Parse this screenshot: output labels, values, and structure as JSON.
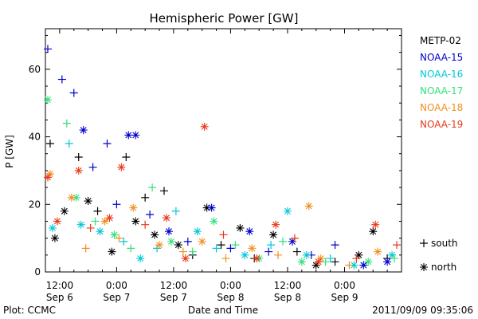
{
  "chart_data": {
    "type": "scatter",
    "title": "Hemispheric Power [GW]",
    "ylabel": "P [GW]",
    "xlabel": "Date and Time",
    "ylim": [
      0,
      72
    ],
    "xlim": [
      "2011-09-06 09:00",
      "2011-09-09 12:00"
    ],
    "yticks": [
      0,
      20,
      40,
      60
    ],
    "xticks": [
      {
        "time": "12:00",
        "date": "Sep 6",
        "at": "2011-09-06 12:00"
      },
      {
        "time": "0:00",
        "date": "Sep 7",
        "at": "2011-09-07 00:00"
      },
      {
        "time": "12:00",
        "date": "Sep 7",
        "at": "2011-09-07 12:00"
      },
      {
        "time": "0:00",
        "date": "Sep 8",
        "at": "2011-09-08 00:00"
      },
      {
        "time": "12:00",
        "date": "Sep 8",
        "at": "2011-09-08 12:00"
      },
      {
        "time": "0:00",
        "date": "Sep 9",
        "at": "2011-09-09 00:00"
      }
    ],
    "legend": {
      "placement": "right",
      "symbols": [
        {
          "marker": "+",
          "label": "south"
        },
        {
          "marker": "*",
          "label": "north"
        }
      ]
    },
    "series": [
      {
        "name": "METP-02",
        "color": "#000000",
        "points": [
          {
            "t": "2011-09-06 10:00",
            "p": 38.0,
            "m": "+"
          },
          {
            "t": "2011-09-06 11:00",
            "p": 10.0,
            "m": "*"
          },
          {
            "t": "2011-09-06 13:00",
            "p": 18.0,
            "m": "*"
          },
          {
            "t": "2011-09-06 16:00",
            "p": 34.0,
            "m": "+"
          },
          {
            "t": "2011-09-06 18:00",
            "p": 21.0,
            "m": "*"
          },
          {
            "t": "2011-09-06 20:00",
            "p": 18.0,
            "m": "+"
          },
          {
            "t": "2011-09-06 23:00",
            "p": 6.0,
            "m": "*"
          },
          {
            "t": "2011-09-07 02:00",
            "p": 34.0,
            "m": "+"
          },
          {
            "t": "2011-09-07 04:00",
            "p": 15.0,
            "m": "*"
          },
          {
            "t": "2011-09-07 06:00",
            "p": 22.0,
            "m": "+"
          },
          {
            "t": "2011-09-07 08:00",
            "p": 11.0,
            "m": "*"
          },
          {
            "t": "2011-09-07 10:00",
            "p": 24.0,
            "m": "+"
          },
          {
            "t": "2011-09-07 13:00",
            "p": 8.0,
            "m": "*"
          },
          {
            "t": "2011-09-07 16:00",
            "p": 5.0,
            "m": "+"
          },
          {
            "t": "2011-09-07 19:00",
            "p": 19.0,
            "m": "*"
          },
          {
            "t": "2011-09-07 22:00",
            "p": 8.0,
            "m": "+"
          },
          {
            "t": "2011-09-08 02:00",
            "p": 13.0,
            "m": "*"
          },
          {
            "t": "2011-09-08 05:00",
            "p": 4.0,
            "m": "+"
          },
          {
            "t": "2011-09-08 09:00",
            "p": 11.0,
            "m": "*"
          },
          {
            "t": "2011-09-08 14:00",
            "p": 6.0,
            "m": "+"
          },
          {
            "t": "2011-09-08 18:00",
            "p": 2.0,
            "m": "*"
          },
          {
            "t": "2011-09-08 22:00",
            "p": 3.0,
            "m": "+"
          },
          {
            "t": "2011-09-09 03:00",
            "p": 5.0,
            "m": "*"
          },
          {
            "t": "2011-09-09 06:00",
            "p": 12.0,
            "m": "*"
          },
          {
            "t": "2011-09-09 09:00",
            "p": 4.0,
            "m": "+"
          }
        ]
      },
      {
        "name": "NOAA-15",
        "color": "#0000cc",
        "points": [
          {
            "t": "2011-09-06 09:30",
            "p": 66.0,
            "m": "+"
          },
          {
            "t": "2011-09-06 12:30",
            "p": 57.0,
            "m": "+"
          },
          {
            "t": "2011-09-06 15:00",
            "p": 53.0,
            "m": "+"
          },
          {
            "t": "2011-09-06 17:00",
            "p": 42.0,
            "m": "*"
          },
          {
            "t": "2011-09-06 19:00",
            "p": 31.0,
            "m": "+"
          },
          {
            "t": "2011-09-06 22:00",
            "p": 38.0,
            "m": "+"
          },
          {
            "t": "2011-09-07 00:00",
            "p": 20.0,
            "m": "+"
          },
          {
            "t": "2011-09-07 02:30",
            "p": 40.5,
            "m": "*"
          },
          {
            "t": "2011-09-07 04:00",
            "p": 40.5,
            "m": "*"
          },
          {
            "t": "2011-09-07 07:00",
            "p": 17.0,
            "m": "+"
          },
          {
            "t": "2011-09-07 11:00",
            "p": 12.0,
            "m": "*"
          },
          {
            "t": "2011-09-07 15:00",
            "p": 9.0,
            "m": "+"
          },
          {
            "t": "2011-09-07 20:00",
            "p": 19.0,
            "m": "*"
          },
          {
            "t": "2011-09-08 00:00",
            "p": 7.0,
            "m": "+"
          },
          {
            "t": "2011-09-08 04:00",
            "p": 12.0,
            "m": "*"
          },
          {
            "t": "2011-09-08 08:00",
            "p": 6.0,
            "m": "+"
          },
          {
            "t": "2011-09-08 13:00",
            "p": 9.0,
            "m": "*"
          },
          {
            "t": "2011-09-08 17:00",
            "p": 5.0,
            "m": "+"
          },
          {
            "t": "2011-09-08 22:00",
            "p": 8.0,
            "m": "+"
          },
          {
            "t": "2011-09-09 04:00",
            "p": 2.0,
            "m": "*"
          },
          {
            "t": "2011-09-09 09:00",
            "p": 3.0,
            "m": "*"
          }
        ]
      },
      {
        "name": "NOAA-16",
        "color": "#00c8d8",
        "points": [
          {
            "t": "2011-09-06 10:30",
            "p": 13.0,
            "m": "*"
          },
          {
            "t": "2011-09-06 14:00",
            "p": 38.0,
            "m": "+"
          },
          {
            "t": "2011-09-06 16:30",
            "p": 14.0,
            "m": "*"
          },
          {
            "t": "2011-09-06 20:30",
            "p": 12.0,
            "m": "*"
          },
          {
            "t": "2011-09-07 01:30",
            "p": 9.0,
            "m": "+"
          },
          {
            "t": "2011-09-07 05:00",
            "p": 4.0,
            "m": "*"
          },
          {
            "t": "2011-09-07 08:30",
            "p": 7.0,
            "m": "+"
          },
          {
            "t": "2011-09-07 12:30",
            "p": 18.0,
            "m": "+"
          },
          {
            "t": "2011-09-07 17:00",
            "p": 12.0,
            "m": "*"
          },
          {
            "t": "2011-09-07 21:00",
            "p": 7.0,
            "m": "+"
          },
          {
            "t": "2011-09-08 03:00",
            "p": 5.0,
            "m": "*"
          },
          {
            "t": "2011-09-08 08:30",
            "p": 8.0,
            "m": "+"
          },
          {
            "t": "2011-09-08 12:00",
            "p": 18.0,
            "m": "*"
          },
          {
            "t": "2011-09-08 16:00",
            "p": 5.0,
            "m": "*"
          },
          {
            "t": "2011-09-08 21:00",
            "p": 4.0,
            "m": "+"
          },
          {
            "t": "2011-09-09 02:00",
            "p": 2.0,
            "m": "*"
          },
          {
            "t": "2011-09-09 10:00",
            "p": 5.0,
            "m": "*"
          }
        ]
      },
      {
        "name": "NOAA-17",
        "color": "#33e080",
        "points": [
          {
            "t": "2011-09-06 09:30",
            "p": 51.0,
            "m": "*"
          },
          {
            "t": "2011-09-06 13:30",
            "p": 44.0,
            "m": "+"
          },
          {
            "t": "2011-09-06 15:30",
            "p": 22.0,
            "m": "*"
          },
          {
            "t": "2011-09-06 19:30",
            "p": 15.0,
            "m": "+"
          },
          {
            "t": "2011-09-06 23:30",
            "p": 11.0,
            "m": "*"
          },
          {
            "t": "2011-09-07 03:00",
            "p": 7.0,
            "m": "+"
          },
          {
            "t": "2011-09-07 07:30",
            "p": 25.0,
            "m": "+"
          },
          {
            "t": "2011-09-07 11:30",
            "p": 9.0,
            "m": "*"
          },
          {
            "t": "2011-09-07 16:00",
            "p": 6.0,
            "m": "+"
          },
          {
            "t": "2011-09-07 20:30",
            "p": 15.0,
            "m": "*"
          },
          {
            "t": "2011-09-08 01:00",
            "p": 8.0,
            "m": "+"
          },
          {
            "t": "2011-09-08 06:00",
            "p": 4.0,
            "m": "*"
          },
          {
            "t": "2011-09-08 11:00",
            "p": 9.0,
            "m": "+"
          },
          {
            "t": "2011-09-08 15:00",
            "p": 3.0,
            "m": "*"
          },
          {
            "t": "2011-09-08 20:00",
            "p": 3.0,
            "m": "+"
          },
          {
            "t": "2011-09-09 05:00",
            "p": 3.0,
            "m": "*"
          },
          {
            "t": "2011-09-09 10:30",
            "p": 4.0,
            "m": "+"
          }
        ]
      },
      {
        "name": "NOAA-18",
        "color": "#f09020",
        "points": [
          {
            "t": "2011-09-06 10:00",
            "p": 29.0,
            "m": "*"
          },
          {
            "t": "2011-09-06 14:30",
            "p": 22.0,
            "m": "*"
          },
          {
            "t": "2011-09-06 17:30",
            "p": 7.0,
            "m": "+"
          },
          {
            "t": "2011-09-06 21:30",
            "p": 15.0,
            "m": "*"
          },
          {
            "t": "2011-09-07 00:30",
            "p": 10.0,
            "m": "+"
          },
          {
            "t": "2011-09-07 03:30",
            "p": 19.0,
            "m": "*"
          },
          {
            "t": "2011-09-07 09:00",
            "p": 8.0,
            "m": "*"
          },
          {
            "t": "2011-09-07 14:00",
            "p": 6.0,
            "m": "+"
          },
          {
            "t": "2011-09-07 18:00",
            "p": 9.0,
            "m": "*"
          },
          {
            "t": "2011-09-07 23:00",
            "p": 4.0,
            "m": "+"
          },
          {
            "t": "2011-09-08 04:30",
            "p": 7.0,
            "m": "*"
          },
          {
            "t": "2011-09-08 10:00",
            "p": 5.0,
            "m": "+"
          },
          {
            "t": "2011-09-08 16:30",
            "p": 19.5,
            "m": "*"
          },
          {
            "t": "2011-09-08 19:00",
            "p": 4.0,
            "m": "*"
          },
          {
            "t": "2011-09-09 01:00",
            "p": 2.0,
            "m": "+"
          },
          {
            "t": "2011-09-09 07:00",
            "p": 6.0,
            "m": "*"
          }
        ]
      },
      {
        "name": "NOAA-19",
        "color": "#e83a1a",
        "points": [
          {
            "t": "2011-09-06 09:30",
            "p": 28.0,
            "m": "*"
          },
          {
            "t": "2011-09-06 11:30",
            "p": 15.0,
            "m": "*"
          },
          {
            "t": "2011-09-06 16:00",
            "p": 30.0,
            "m": "*"
          },
          {
            "t": "2011-09-06 18:30",
            "p": 13.0,
            "m": "+"
          },
          {
            "t": "2011-09-06 22:30",
            "p": 16.0,
            "m": "*"
          },
          {
            "t": "2011-09-07 01:00",
            "p": 31.0,
            "m": "*"
          },
          {
            "t": "2011-09-07 06:00",
            "p": 14.0,
            "m": "+"
          },
          {
            "t": "2011-09-07 10:30",
            "p": 16.0,
            "m": "*"
          },
          {
            "t": "2011-09-07 14:30",
            "p": 4.0,
            "m": "*"
          },
          {
            "t": "2011-09-07 18:30",
            "p": 43.0,
            "m": "*"
          },
          {
            "t": "2011-09-07 22:30",
            "p": 11.0,
            "m": "+"
          },
          {
            "t": "2011-09-08 05:30",
            "p": 4.0,
            "m": "*"
          },
          {
            "t": "2011-09-08 09:30",
            "p": 14.0,
            "m": "*"
          },
          {
            "t": "2011-09-08 13:30",
            "p": 10.0,
            "m": "+"
          },
          {
            "t": "2011-09-08 18:30",
            "p": 3.0,
            "m": "*"
          },
          {
            "t": "2011-09-09 02:30",
            "p": 4.0,
            "m": "+"
          },
          {
            "t": "2011-09-09 06:30",
            "p": 14.0,
            "m": "*"
          },
          {
            "t": "2011-09-09 11:00",
            "p": 8.0,
            "m": "+"
          }
        ]
      }
    ]
  },
  "footer": {
    "left": "Plot: CCMC",
    "right": "2011/09/09 09:35:06"
  }
}
